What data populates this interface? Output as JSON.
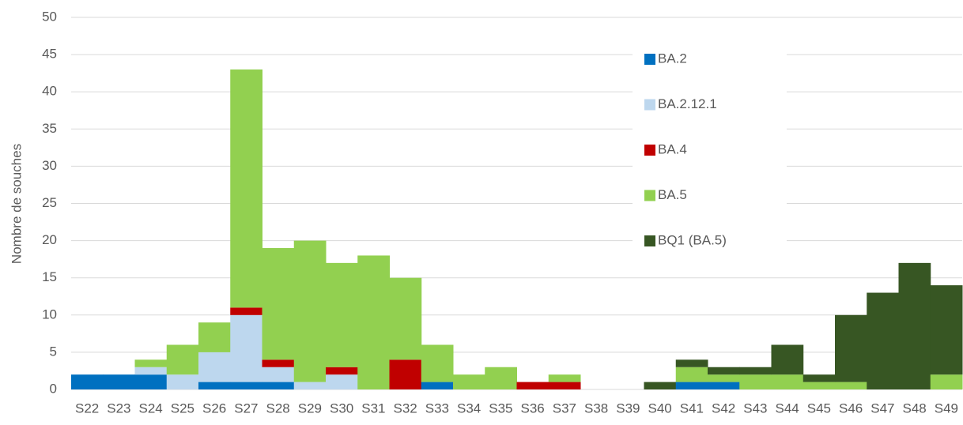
{
  "chart_data": {
    "type": "stacked_bar",
    "y_label": "Nombre de souches",
    "categories": [
      "S22",
      "S23",
      "S24",
      "S25",
      "S26",
      "S27",
      "S28",
      "S29",
      "S30",
      "S31",
      "S32",
      "S33",
      "S34",
      "S35",
      "S36",
      "S37",
      "S38",
      "S39",
      "S40",
      "S41",
      "S42",
      "S43",
      "S44",
      "S45",
      "S46",
      "S47",
      "S48",
      "S49"
    ],
    "series": [
      {
        "name": "BA.2",
        "color": "#0070c0",
        "values": [
          2,
          2,
          2,
          0,
          1,
          1,
          1,
          0,
          0,
          0,
          0,
          1,
          0,
          0,
          0,
          0,
          0,
          0,
          0,
          1,
          1,
          0,
          0,
          0,
          0,
          0,
          0,
          0
        ]
      },
      {
        "name": "BA.2.12.1",
        "color": "#bdd7ee",
        "values": [
          0,
          0,
          1,
          2,
          4,
          9,
          2,
          1,
          2,
          0,
          0,
          0,
          0,
          0,
          0,
          0,
          0,
          0,
          0,
          0,
          0,
          0,
          0,
          0,
          0,
          0,
          0,
          0
        ]
      },
      {
        "name": "BA.4",
        "color": "#c00000",
        "values": [
          0,
          0,
          0,
          0,
          0,
          1,
          1,
          0,
          1,
          0,
          4,
          0,
          0,
          0,
          1,
          1,
          0,
          0,
          0,
          0,
          0,
          0,
          0,
          0,
          0,
          0,
          0,
          0
        ]
      },
      {
        "name": "BA.5",
        "color": "#92d050",
        "values": [
          0,
          0,
          1,
          4,
          4,
          32,
          15,
          19,
          14,
          18,
          11,
          5,
          2,
          3,
          0,
          1,
          0,
          0,
          0,
          2,
          1,
          2,
          2,
          1,
          1,
          0,
          0,
          2
        ]
      },
      {
        "name": "BQ1 (BA.5)",
        "color": "#375623",
        "values": [
          0,
          0,
          0,
          0,
          0,
          0,
          0,
          0,
          0,
          0,
          0,
          0,
          0,
          0,
          0,
          0,
          0,
          0,
          1,
          1,
          1,
          1,
          4,
          1,
          9,
          13,
          17,
          12
        ]
      }
    ],
    "ylim": [
      0,
      50
    ],
    "yticks": [
      0,
      5,
      10,
      15,
      20,
      25,
      30,
      35,
      40,
      45,
      50
    ],
    "grid": true
  }
}
